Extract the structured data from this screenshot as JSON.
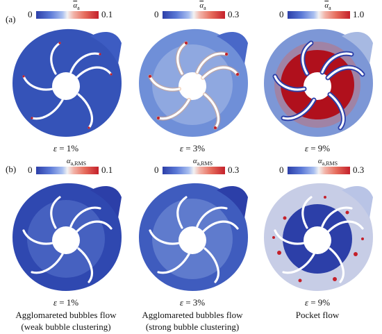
{
  "row_a": {
    "label": "(a)",
    "colorbars": [
      {
        "symbol": "α",
        "sub": "a",
        "min": "0",
        "max": "0.1"
      },
      {
        "symbol": "α",
        "sub": "a",
        "min": "0",
        "max": "0.3"
      },
      {
        "symbol": "α",
        "sub": "a",
        "min": "0",
        "max": "1.0"
      }
    ],
    "cases": [
      {
        "eps_symbol": "ε",
        "eq": "= 1%"
      },
      {
        "eps_symbol": "ε",
        "eq": "= 3%"
      },
      {
        "eps_symbol": "ε",
        "eq": "= 9%"
      }
    ]
  },
  "row_b": {
    "label": "(b)",
    "colorbars": [
      {
        "symbol": "α",
        "sub": "a,RMS",
        "min": "0",
        "max": "0.1"
      },
      {
        "symbol": "α",
        "sub": "a,RMS",
        "min": "0",
        "max": "0.3"
      },
      {
        "symbol": "α",
        "sub": "a,RMS",
        "min": "0",
        "max": "0.3"
      }
    ],
    "cases": [
      {
        "eps_symbol": "ε",
        "eq": "= 1%"
      },
      {
        "eps_symbol": "ε",
        "eq": "= 3%"
      },
      {
        "eps_symbol": "ε",
        "eq": "= 9%"
      }
    ],
    "regimes": [
      {
        "line1": "Agglomareted bubbles flow",
        "line2": "(weak bubble clustering)"
      },
      {
        "line1": "Agglomareted bubbles flow",
        "line2": "(strong bubble clustering)"
      },
      {
        "line1": "Pocket flow",
        "line2": ""
      }
    ]
  },
  "colors": {
    "low": "#2c3fa8",
    "mid": "#f2f2f2",
    "high": "#c4202a"
  }
}
